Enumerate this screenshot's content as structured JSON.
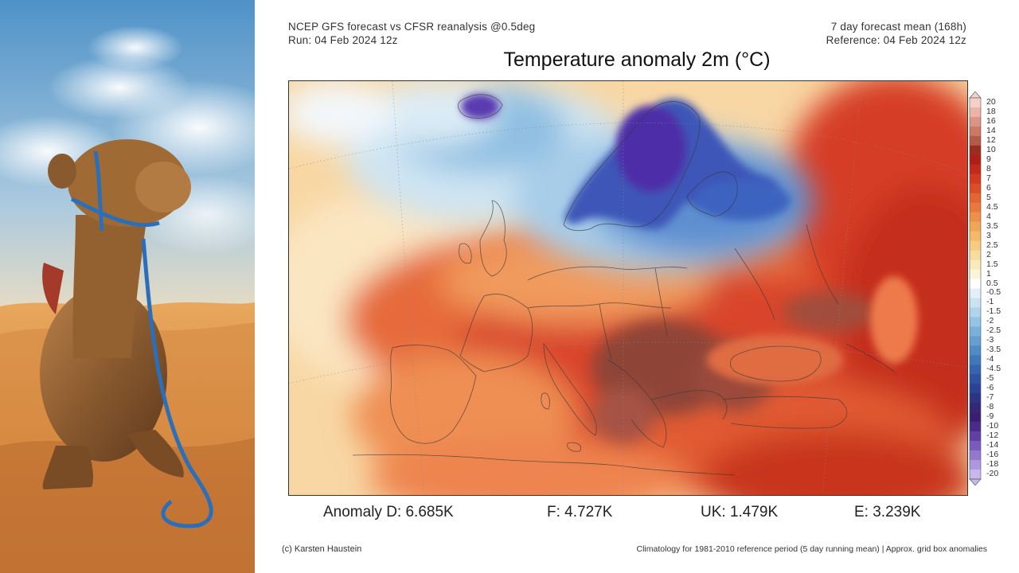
{
  "header": {
    "left_line1": "NCEP GFS forecast vs CFSR reanalysis @0.5deg",
    "left_line2": "Run: 04 Feb 2024 12z",
    "right_line1": "7 day forecast mean (168h)",
    "right_line2": "Reference: 04 Feb 2024 12z"
  },
  "map": {
    "title": "Temperature anomaly 2m (°C)"
  },
  "colorbar": {
    "labels": [
      "20",
      "18",
      "16",
      "14",
      "12",
      "10",
      "9",
      "8",
      "7",
      "6",
      "5",
      "4.5",
      "4",
      "3.5",
      "3",
      "2.5",
      "2",
      "1.5",
      "1",
      "0.5",
      "-0.5",
      "-1",
      "-1.5",
      "-2",
      "-2.5",
      "-3",
      "-3.5",
      "-4",
      "-4.5",
      "-5",
      "-6",
      "-7",
      "-8",
      "-9",
      "-10",
      "-12",
      "-14",
      "-16",
      "-18",
      "-20"
    ],
    "colors": [
      "#f4d0c6",
      "#eab5a6",
      "#dc9583",
      "#cd7866",
      "#b35a4a",
      "#9c2b20",
      "#b01e1a",
      "#c32a1c",
      "#d33a22",
      "#dd4e28",
      "#e36532",
      "#e9793c",
      "#ee9148",
      "#f1a656",
      "#f4ba68",
      "#f6cc80",
      "#f8dc9c",
      "#faeabb",
      "#fbf4d8",
      "#ffffff",
      "#e3f0f8",
      "#c9e3f2",
      "#b0d4ec",
      "#95c3e4",
      "#7ab1da",
      "#649fd0",
      "#4f8cc6",
      "#3f78bb",
      "#3565af",
      "#2f52a2",
      "#2c4294",
      "#2d3385",
      "#332777",
      "#3b1e72",
      "#4b2a8a",
      "#6140a6",
      "#7a5bbd",
      "#9478cf",
      "#ad97dd",
      "#c8b8ea"
    ]
  },
  "stats": {
    "d": "Anomaly D: 6.685K",
    "f": "F: 4.727K",
    "uk": "UK: 1.479K",
    "e": "E: 3.239K"
  },
  "footer": {
    "left": "(c) Karsten Haustein",
    "right": "Climatology for 1981-2010 reference period (5 day running mean) | Approx. grid box anomalies"
  }
}
